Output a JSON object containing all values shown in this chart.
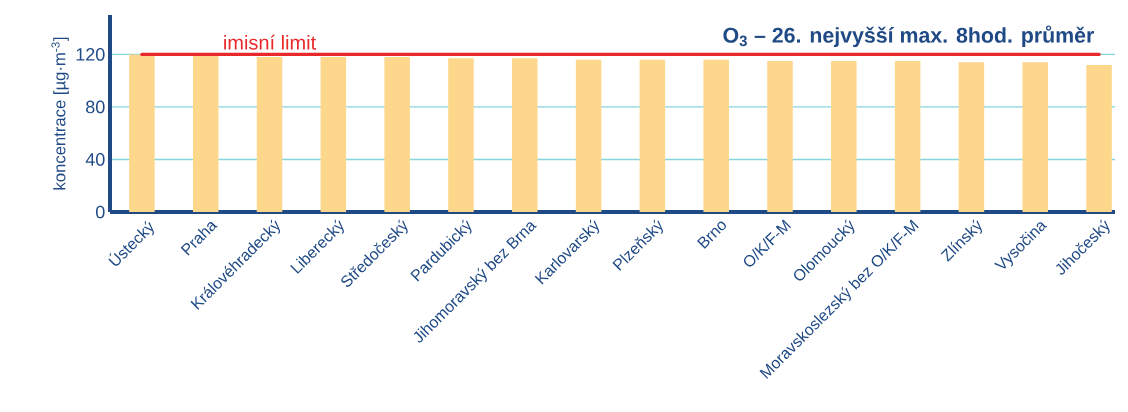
{
  "chart_data": {
    "type": "bar",
    "title": "O$_{3}$ – 26. nejvyšší max. 8hod. průměr",
    "ylabel": "koncentrace [µg·m$^{-3}$]",
    "categories": [
      "Ústecký",
      "Praha",
      "Královéhradecký",
      "Liberecký",
      "Středočeský",
      "Pardubický",
      "Jihomoravský bez Brna",
      "Karlovarský",
      "Plzeňský",
      "Brno",
      "O/K/F-M",
      "Olomoucký",
      "Moravskoslezský bez O/K/F-M",
      "Zlínský",
      "Vysočina",
      "Jihočeský"
    ],
    "values": [
      120,
      119,
      118,
      118,
      118,
      117,
      117,
      116,
      116,
      116,
      115,
      115,
      115,
      114,
      114,
      112
    ],
    "color": "#fdd78c",
    "ylim": [
      0,
      150
    ],
    "yticks": [
      0,
      40,
      80,
      120
    ],
    "grid": "y",
    "ref_lines": [
      {
        "axis": "y",
        "value": 120,
        "label": "imisní limit",
        "color": "#e8282b"
      }
    ]
  }
}
